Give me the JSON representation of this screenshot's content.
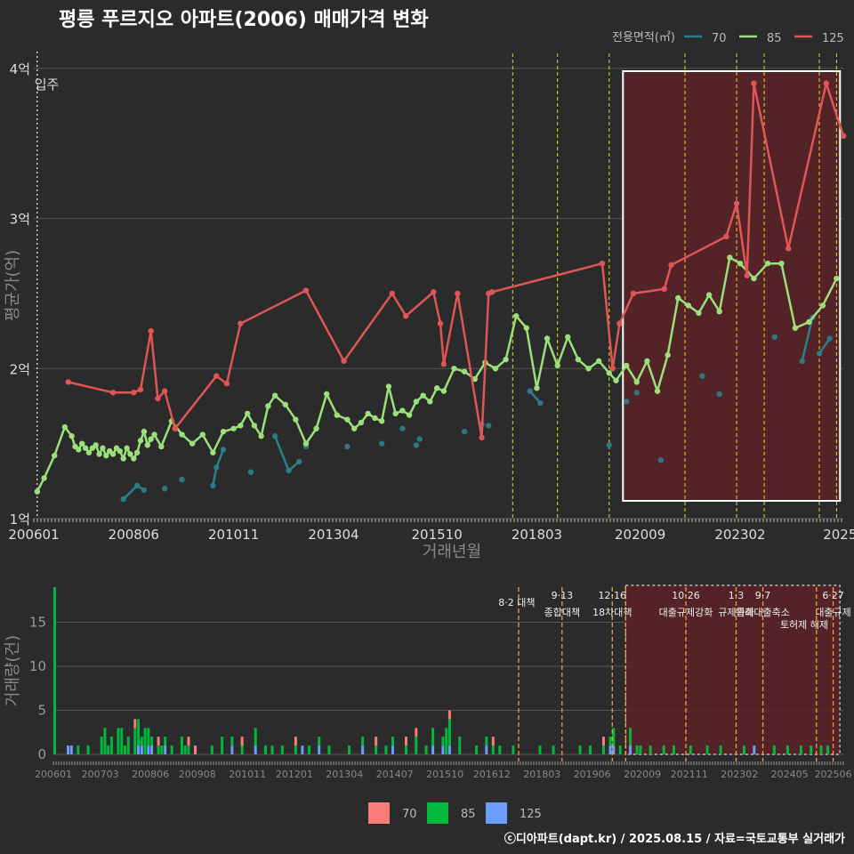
{
  "chart_data": {
    "type": "line",
    "title": "평릉 푸르지오 아파트(2006) 매매가격 변화",
    "legend_title": "전용면적(㎡)",
    "credit": "ⓒ디아파트(dapt.kr) / 2025.08.15 / 자료=국토교통부 실거래가",
    "colors": {
      "70": "#2b7f8c",
      "85": "#9be07a",
      "125": "#e05555"
    },
    "bar_colors": {
      "70": "#f87d7a",
      "85": "#00b83b",
      "125": "#6a9dff"
    },
    "move_in_label": "입주",
    "price_panel": {
      "ylabel": "평균가(억)",
      "xlabel": "거래년월",
      "ylim": [
        1,
        4
      ],
      "yticks": [
        1,
        2,
        3,
        4
      ],
      "ytick_labels": [
        "1억",
        "2억",
        "3억",
        "4억"
      ],
      "xticks": [
        "2006-01",
        "2008-06",
        "2010-11",
        "2013-04",
        "2015-10",
        "2018-03",
        "2020-09",
        "2023-02",
        "2025-07"
      ],
      "xtick_labels": [
        "200601",
        "200806",
        "201011",
        "201304",
        "201510",
        "201803",
        "202009",
        "202302",
        "2025"
      ],
      "highlight_box": [
        "2020-04",
        "2025-07"
      ],
      "policy_lines": [
        "2017-08",
        "2018-09",
        "2019-12",
        "2021-10",
        "2023-01",
        "2023-09",
        "2025-01",
        "2025-06"
      ]
    },
    "series": [
      {
        "name": "70",
        "lines": [
          {
            "x": [
              "2008-03",
              "2008-07",
              "2008-09"
            ],
            "y": [
              1.13,
              1.22,
              1.19
            ]
          },
          {
            "x": [
              "2010-05",
              "2010-06",
              "2010-08"
            ],
            "y": [
              1.22,
              1.34,
              1.46
            ]
          },
          {
            "x": [
              "2011-11",
              "2012-03",
              "2012-06"
            ],
            "y": [
              1.55,
              1.32,
              1.38
            ]
          },
          {
            "x": [
              "2018-01",
              "2018-04"
            ],
            "y": [
              1.85,
              1.77
            ]
          },
          {
            "x": [
              "2024-08",
              "2024-11"
            ],
            "y": [
              2.05,
              2.34
            ]
          },
          {
            "x": [
              "2025-01",
              "2025-04"
            ],
            "y": [
              2.1,
              2.2
            ]
          }
        ],
        "points": {
          "x": [
            "2008-03",
            "2008-07",
            "2008-09",
            "2009-03",
            "2009-08",
            "2010-05",
            "2010-06",
            "2010-08",
            "2011-11",
            "2012-03",
            "2012-06",
            "2011-04",
            "2012-08",
            "2013-08",
            "2014-06",
            "2014-12",
            "2015-04",
            "2015-05",
            "2016-06",
            "2016-11",
            "2017-01",
            "2018-01",
            "2018-04",
            "2019-12",
            "2020-05",
            "2020-08",
            "2021-03",
            "2022-03",
            "2022-08",
            "2023-12",
            "2024-08",
            "2024-11",
            "2025-01",
            "2025-04"
          ],
          "y": [
            1.13,
            1.22,
            1.19,
            1.2,
            1.26,
            1.22,
            1.34,
            1.46,
            1.55,
            1.32,
            1.38,
            1.31,
            1.48,
            1.48,
            1.5,
            1.6,
            1.49,
            1.53,
            1.58,
            1.63,
            1.62,
            1.85,
            1.77,
            1.49,
            1.78,
            1.84,
            1.39,
            1.95,
            1.83,
            2.21,
            2.05,
            2.34,
            2.1,
            2.2
          ]
        }
      },
      {
        "name": "85",
        "x": [
          "2006-02",
          "2006-04",
          "2006-07",
          "2006-10",
          "2006-12",
          "2007-01",
          "2007-02",
          "2007-03",
          "2007-04",
          "2007-05",
          "2007-06",
          "2007-07",
          "2007-08",
          "2007-09",
          "2007-10",
          "2007-11",
          "2007-12",
          "2008-01",
          "2008-02",
          "2008-03",
          "2008-04",
          "2008-05",
          "2008-06",
          "2008-07",
          "2008-08",
          "2008-09",
          "2008-10",
          "2008-11",
          "2008-12",
          "2009-02",
          "2009-05",
          "2009-08",
          "2009-11",
          "2010-02",
          "2010-05",
          "2010-08",
          "2010-11",
          "2011-01",
          "2011-03",
          "2011-05",
          "2011-07",
          "2011-09",
          "2011-11",
          "2012-02",
          "2012-05",
          "2012-08",
          "2012-11",
          "2013-02",
          "2013-05",
          "2013-08",
          "2013-10",
          "2013-12",
          "2014-02",
          "2014-04",
          "2014-06",
          "2014-08",
          "2014-10",
          "2014-12",
          "2015-02",
          "2015-04",
          "2015-06",
          "2015-08",
          "2015-10",
          "2015-12",
          "2016-03",
          "2016-06",
          "2016-09",
          "2016-12",
          "2017-03",
          "2017-06",
          "2017-09",
          "2017-12",
          "2018-03",
          "2018-06",
          "2018-09",
          "2018-12",
          "2019-03",
          "2019-06",
          "2019-09",
          "2019-12",
          "2020-02",
          "2020-05",
          "2020-08",
          "2020-11",
          "2021-02",
          "2021-05",
          "2021-08",
          "2021-11",
          "2022-02",
          "2022-05",
          "2022-08",
          "2022-11",
          "2023-02",
          "2023-06",
          "2023-10",
          "2024-02",
          "2024-06",
          "2024-10",
          "2025-02",
          "2025-06"
        ],
        "y": [
          1.18,
          1.27,
          1.42,
          1.61,
          1.55,
          1.48,
          1.46,
          1.5,
          1.47,
          1.44,
          1.47,
          1.49,
          1.43,
          1.47,
          1.42,
          1.45,
          1.43,
          1.47,
          1.45,
          1.4,
          1.47,
          1.43,
          1.4,
          1.44,
          1.52,
          1.58,
          1.49,
          1.53,
          1.56,
          1.48,
          1.65,
          1.56,
          1.5,
          1.56,
          1.44,
          1.58,
          1.6,
          1.62,
          1.7,
          1.62,
          1.55,
          1.75,
          1.82,
          1.76,
          1.66,
          1.5,
          1.6,
          1.83,
          1.69,
          1.66,
          1.6,
          1.64,
          1.7,
          1.67,
          1.65,
          1.88,
          1.7,
          1.72,
          1.69,
          1.78,
          1.82,
          1.78,
          1.87,
          1.85,
          2.0,
          1.98,
          1.93,
          2.04,
          2.0,
          2.06,
          2.35,
          2.27,
          1.87,
          2.2,
          2.02,
          2.21,
          2.06,
          2.0,
          2.05,
          1.97,
          1.92,
          2.02,
          1.91,
          2.05,
          1.85,
          2.09,
          2.47,
          2.42,
          2.37,
          2.49,
          2.38,
          2.74,
          2.7,
          2.6,
          2.7,
          2.7,
          2.27,
          2.31,
          2.42,
          2.6
        ]
      },
      {
        "name": "125",
        "x": [
          "2006-11",
          "2007-12",
          "2008-06",
          "2008-08",
          "2008-11",
          "2009-01",
          "2009-03",
          "2009-06",
          "2010-06",
          "2010-09",
          "2011-01",
          "2012-08",
          "2013-07",
          "2014-09",
          "2015-01",
          "2015-09",
          "2015-11",
          "2015-12",
          "2016-04",
          "2016-11",
          "2017-01",
          "2017-02",
          "2019-10",
          "2020-01",
          "2020-03",
          "2020-07",
          "2021-04",
          "2021-06",
          "2022-10",
          "2023-01",
          "2023-04",
          "2023-06",
          "2024-04",
          "2025-03",
          "2025-08"
        ],
        "y": [
          1.91,
          1.84,
          1.84,
          1.86,
          2.25,
          1.8,
          1.85,
          1.6,
          1.95,
          1.9,
          2.3,
          2.52,
          2.05,
          2.5,
          2.35,
          2.51,
          2.3,
          2.03,
          2.5,
          1.54,
          2.5,
          2.51,
          2.7,
          2.0,
          2.3,
          2.5,
          2.53,
          2.69,
          2.88,
          3.1,
          2.62,
          3.9,
          2.8,
          3.9,
          3.55
        ]
      }
    ],
    "volume_panel": {
      "ylabel": "거래량(건)",
      "ylim": [
        0,
        19
      ],
      "yticks": [
        0,
        5,
        10,
        15
      ],
      "ytick_labels": [
        "0",
        "5",
        "10",
        "15"
      ],
      "xtick_labels": [
        "200601",
        "200703",
        "200806",
        "200908",
        "201011",
        "201201",
        "201304",
        "201407",
        "201510",
        "201612",
        "201803",
        "201906",
        "202009",
        "202111",
        "202302",
        "202405",
        "202506"
      ],
      "highlight_box": [
        "2020-04",
        "2025-08"
      ],
      "events": [
        {
          "date": "2017-08",
          "line1": "8·2 대책",
          "line2": ""
        },
        {
          "date": "2018-09",
          "line1": "9·13",
          "line2": "종합대책"
        },
        {
          "date": "2019-12",
          "line1": "12·16",
          "line2": "18차대책"
        },
        {
          "date": "2021-10",
          "line1": "10·26",
          "line2": "대출규제강화"
        },
        {
          "date": "2023-01",
          "line1": "1·3",
          "line2": "규제완화"
        },
        {
          "date": "2023-09",
          "line1": "9·7",
          "line2": "특례대출축소"
        },
        {
          "date": "2025-06",
          "line1": "6·27",
          "line2": "대출규제"
        }
      ],
      "extra_labels": [
        "토허제 해제"
      ],
      "extra_lines": [
        "2020-04",
        "2025-01"
      ],
      "legend": [
        "70",
        "85",
        "125"
      ],
      "bars": [
        {
          "date": "2006-01",
          "s70": 0,
          "s85": 19,
          "s125": 0
        },
        {
          "date": "2006-05",
          "s70": 0,
          "s85": 0,
          "s125": 1
        },
        {
          "date": "2006-06",
          "s70": 0,
          "s85": 0,
          "s125": 1
        },
        {
          "date": "2006-08",
          "s70": 0,
          "s85": 1,
          "s125": 0
        },
        {
          "date": "2006-11",
          "s70": 0,
          "s85": 1,
          "s125": 0
        },
        {
          "date": "2007-03",
          "s70": 0,
          "s85": 2,
          "s125": 0
        },
        {
          "date": "2007-04",
          "s70": 0,
          "s85": 3,
          "s125": 0
        },
        {
          "date": "2007-05",
          "s70": 0,
          "s85": 1,
          "s125": 0
        },
        {
          "date": "2007-06",
          "s70": 0,
          "s85": 2,
          "s125": 0
        },
        {
          "date": "2007-08",
          "s70": 0,
          "s85": 3,
          "s125": 0
        },
        {
          "date": "2007-09",
          "s70": 0,
          "s85": 3,
          "s125": 0
        },
        {
          "date": "2007-10",
          "s70": 0,
          "s85": 1,
          "s125": 0
        },
        {
          "date": "2007-11",
          "s70": 0,
          "s85": 2,
          "s125": 0
        },
        {
          "date": "2008-01",
          "s70": 1,
          "s85": 3,
          "s125": 0
        },
        {
          "date": "2008-02",
          "s70": 0,
          "s85": 3,
          "s125": 1
        },
        {
          "date": "2008-03",
          "s70": 0,
          "s85": 1,
          "s125": 1
        },
        {
          "date": "2008-04",
          "s70": 0,
          "s85": 3,
          "s125": 0
        },
        {
          "date": "2008-05",
          "s70": 0,
          "s85": 2,
          "s125": 1
        },
        {
          "date": "2008-06",
          "s70": 0,
          "s85": 1,
          "s125": 1
        },
        {
          "date": "2008-08",
          "s70": 1,
          "s85": 1,
          "s125": 0
        },
        {
          "date": "2008-09",
          "s70": 0,
          "s85": 1,
          "s125": 0
        },
        {
          "date": "2008-10",
          "s70": 0,
          "s85": 1,
          "s125": 1
        },
        {
          "date": "2008-12",
          "s70": 0,
          "s85": 1,
          "s125": 0
        },
        {
          "date": "2009-03",
          "s70": 0,
          "s85": 2,
          "s125": 0
        },
        {
          "date": "2009-04",
          "s70": 0,
          "s85": 1,
          "s125": 0
        },
        {
          "date": "2009-05",
          "s70": 1,
          "s85": 1,
          "s125": 0
        },
        {
          "date": "2009-07",
          "s70": 1,
          "s85": 0,
          "s125": 0
        },
        {
          "date": "2009-12",
          "s70": 0,
          "s85": 1,
          "s125": 0
        },
        {
          "date": "2010-03",
          "s70": 0,
          "s85": 2,
          "s125": 0
        },
        {
          "date": "2010-06",
          "s70": 0,
          "s85": 1,
          "s125": 1
        },
        {
          "date": "2010-09",
          "s70": 1,
          "s85": 1,
          "s125": 0
        },
        {
          "date": "2011-01",
          "s70": 0,
          "s85": 2,
          "s125": 1
        },
        {
          "date": "2011-04",
          "s70": 0,
          "s85": 1,
          "s125": 0
        },
        {
          "date": "2011-06",
          "s70": 0,
          "s85": 1,
          "s125": 0
        },
        {
          "date": "2011-09",
          "s70": 0,
          "s85": 1,
          "s125": 0
        },
        {
          "date": "2012-01",
          "s70": 1,
          "s85": 1,
          "s125": 0
        },
        {
          "date": "2012-03",
          "s70": 0,
          "s85": 0,
          "s125": 1
        },
        {
          "date": "2012-05",
          "s70": 0,
          "s85": 1,
          "s125": 0
        },
        {
          "date": "2012-08",
          "s70": 0,
          "s85": 1,
          "s125": 1
        },
        {
          "date": "2012-11",
          "s70": 0,
          "s85": 1,
          "s125": 0
        },
        {
          "date": "2013-05",
          "s70": 0,
          "s85": 1,
          "s125": 0
        },
        {
          "date": "2013-09",
          "s70": 0,
          "s85": 1,
          "s125": 1
        },
        {
          "date": "2014-01",
          "s70": 1,
          "s85": 1,
          "s125": 0
        },
        {
          "date": "2014-04",
          "s70": 0,
          "s85": 1,
          "s125": 0
        },
        {
          "date": "2014-06",
          "s70": 0,
          "s85": 1,
          "s125": 1
        },
        {
          "date": "2014-10",
          "s70": 1,
          "s85": 1,
          "s125": 0
        },
        {
          "date": "2015-01",
          "s70": 1,
          "s85": 2,
          "s125": 0
        },
        {
          "date": "2015-04",
          "s70": 0,
          "s85": 1,
          "s125": 0
        },
        {
          "date": "2015-06",
          "s70": 0,
          "s85": 2,
          "s125": 1
        },
        {
          "date": "2015-09",
          "s70": 0,
          "s85": 1,
          "s125": 1
        },
        {
          "date": "2015-10",
          "s70": 0,
          "s85": 3,
          "s125": 0
        },
        {
          "date": "2015-11",
          "s70": 1,
          "s85": 3,
          "s125": 1
        },
        {
          "date": "2016-02",
          "s70": 0,
          "s85": 2,
          "s125": 0
        },
        {
          "date": "2016-07",
          "s70": 0,
          "s85": 1,
          "s125": 0
        },
        {
          "date": "2016-10",
          "s70": 0,
          "s85": 1,
          "s125": 1
        },
        {
          "date": "2016-12",
          "s70": 1,
          "s85": 1,
          "s125": 0
        },
        {
          "date": "2017-02",
          "s70": 0,
          "s85": 1,
          "s125": 0
        },
        {
          "date": "2017-06",
          "s70": 0,
          "s85": 1,
          "s125": 0
        },
        {
          "date": "2018-02",
          "s70": 0,
          "s85": 1,
          "s125": 0
        },
        {
          "date": "2018-06",
          "s70": 0,
          "s85": 1,
          "s125": 0
        },
        {
          "date": "2019-02",
          "s70": 0,
          "s85": 1,
          "s125": 0
        },
        {
          "date": "2019-05",
          "s70": 0,
          "s85": 1,
          "s125": 0
        },
        {
          "date": "2019-09",
          "s70": 1,
          "s85": 1,
          "s125": 0
        },
        {
          "date": "2019-11",
          "s70": 0,
          "s85": 1,
          "s125": 1
        },
        {
          "date": "2019-12",
          "s70": 0,
          "s85": 2,
          "s125": 1
        },
        {
          "date": "2020-02",
          "s70": 0,
          "s85": 1,
          "s125": 0
        },
        {
          "date": "2020-05",
          "s70": 0,
          "s85": 2,
          "s125": 1
        },
        {
          "date": "2020-07",
          "s70": 0,
          "s85": 1,
          "s125": 0
        },
        {
          "date": "2020-08",
          "s70": 0,
          "s85": 1,
          "s125": 0
        },
        {
          "date": "2020-11",
          "s70": 0,
          "s85": 1,
          "s125": 0
        },
        {
          "date": "2021-03",
          "s70": 0,
          "s85": 1,
          "s125": 0
        },
        {
          "date": "2021-06",
          "s70": 0,
          "s85": 1,
          "s125": 0
        },
        {
          "date": "2021-11",
          "s70": 0,
          "s85": 1,
          "s125": 0
        },
        {
          "date": "2022-04",
          "s70": 0,
          "s85": 1,
          "s125": 0
        },
        {
          "date": "2022-08",
          "s70": 0,
          "s85": 1,
          "s125": 0
        },
        {
          "date": "2023-03",
          "s70": 0,
          "s85": 1,
          "s125": 0
        },
        {
          "date": "2023-06",
          "s70": 0,
          "s85": 0,
          "s125": 1
        },
        {
          "date": "2023-12",
          "s70": 0,
          "s85": 1,
          "s125": 0
        },
        {
          "date": "2024-04",
          "s70": 0,
          "s85": 1,
          "s125": 0
        },
        {
          "date": "2024-08",
          "s70": 0,
          "s85": 1,
          "s125": 0
        },
        {
          "date": "2024-11",
          "s70": 0,
          "s85": 1,
          "s125": 0
        },
        {
          "date": "2025-02",
          "s70": 0,
          "s85": 1,
          "s125": 0
        },
        {
          "date": "2025-04",
          "s70": 0,
          "s85": 1,
          "s125": 0
        }
      ]
    }
  }
}
